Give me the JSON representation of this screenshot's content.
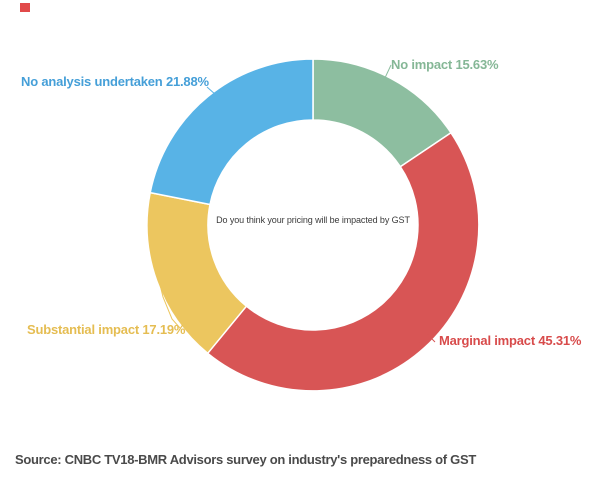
{
  "chart_data": {
    "type": "pie",
    "subtype": "donut",
    "title": "Do you think your pricing will be impacted by GST",
    "center_text": "Do you think your pricing will be impacted by GST",
    "start_angle_deg": 0,
    "direction": "clockwise",
    "inner_radius_ratio": 0.63,
    "legend_position": "none",
    "labels_outside": true,
    "categories": [
      "No impact",
      "Marginal impact",
      "Substantial impact",
      "No analysis undertaken"
    ],
    "values": [
      15.63,
      45.31,
      17.19,
      21.88
    ],
    "slices": [
      {
        "id": "no-impact",
        "label": "No impact",
        "value": 15.63,
        "display": "No impact 15.63%",
        "color": "#8dbea0",
        "label_color": "#85b796"
      },
      {
        "id": "marginal-impact",
        "label": "Marginal impact",
        "value": 45.31,
        "display": "Marginal impact 45.31%",
        "color": "#d85555",
        "label_color": "#d84b4b"
      },
      {
        "id": "substantial-impact",
        "label": "Substantial impact",
        "value": 17.19,
        "display": "Substantial impact 17.19%",
        "color": "#ecc65f",
        "label_color": "#e5bd52"
      },
      {
        "id": "no-analysis-undertaken",
        "label": "No analysis undertaken",
        "value": 21.88,
        "display": "No analysis undertaken 21.88%",
        "color": "#58b3e6",
        "label_color": "#459fd8"
      }
    ]
  },
  "marker": {
    "color": "#e14a4a"
  },
  "source": {
    "text": "Source: CNBC TV18-BMR Advisors survey on industry's preparedness of GST"
  }
}
